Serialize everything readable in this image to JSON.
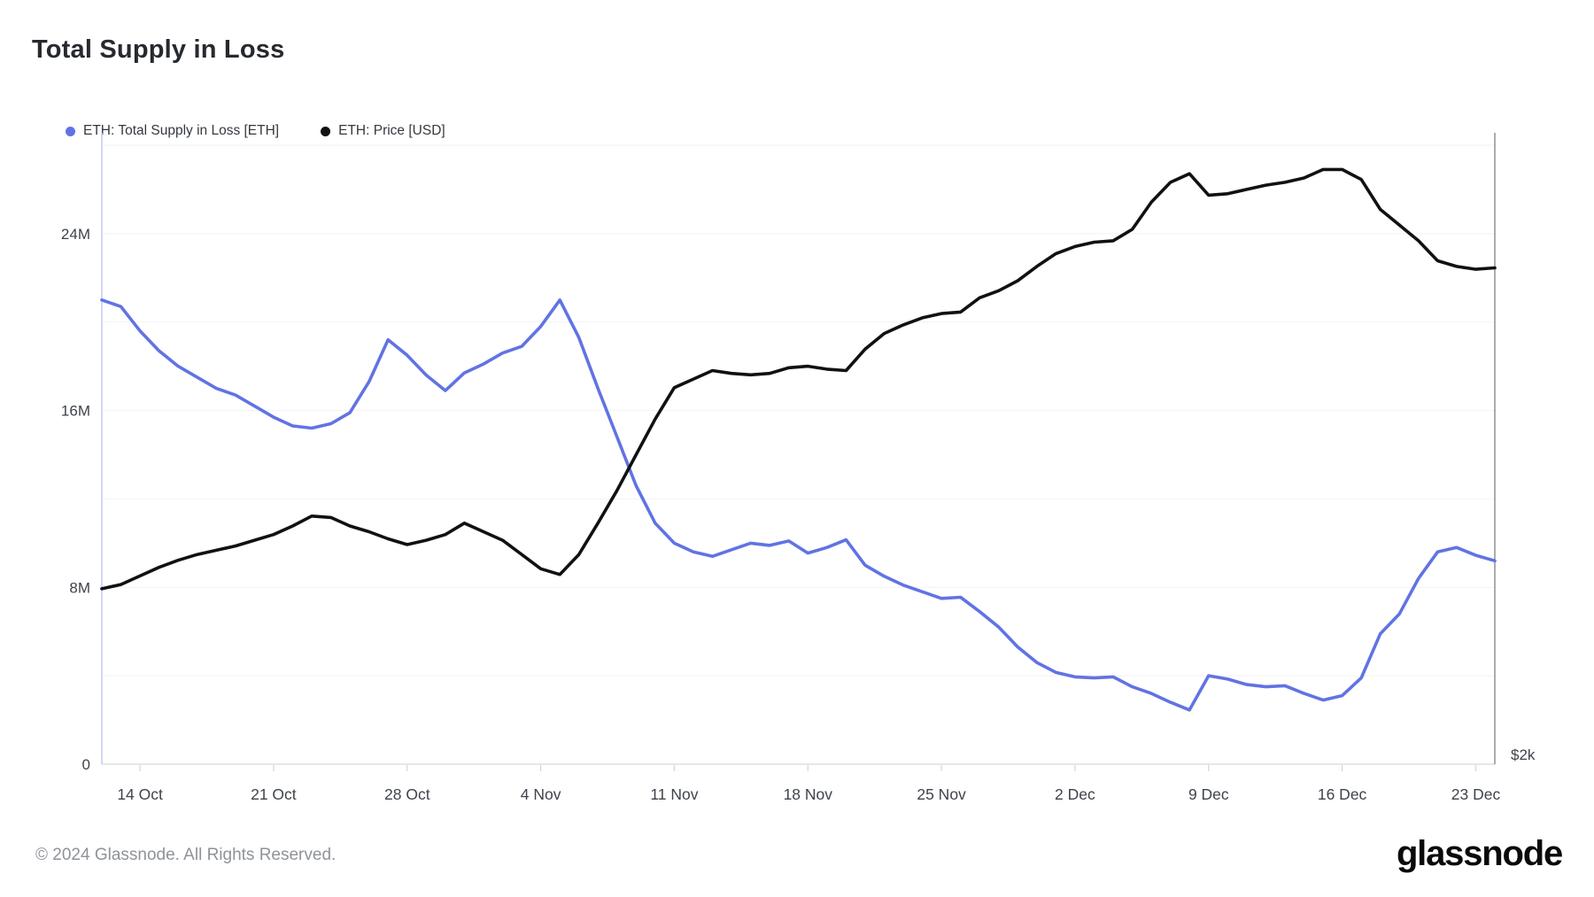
{
  "title": "Total Supply in Loss",
  "legend": [
    {
      "label": "ETH: Total Supply in Loss [ETH]",
      "color": "#6173e3"
    },
    {
      "label": "ETH: Price [USD]",
      "color": "#101114"
    }
  ],
  "footer": {
    "copyright": "© 2024 Glassnode. All Rights Reserved.",
    "brand": "glassnode"
  },
  "colors": {
    "accent_blue": "#6173e3",
    "line_black": "#101114",
    "axis_text": "#3f434b",
    "grid_line": "#f2f2f5",
    "bottom_axis_line": "#dcdee2",
    "left_axis_border": "#c6cdf3",
    "right_axis_border": "#97989e",
    "tick_mark": "#d4d5da",
    "footer_text": "#8f939a"
  },
  "chart_data": {
    "type": "line",
    "title": "Total Supply in Loss",
    "legend_position": "top-left",
    "grid": "horizontal-only",
    "x": [
      "2024-10-12",
      "2024-10-13",
      "2024-10-14",
      "2024-10-15",
      "2024-10-16",
      "2024-10-17",
      "2024-10-18",
      "2024-10-19",
      "2024-10-20",
      "2024-10-21",
      "2024-10-22",
      "2024-10-23",
      "2024-10-24",
      "2024-10-25",
      "2024-10-26",
      "2024-10-27",
      "2024-10-28",
      "2024-10-29",
      "2024-10-30",
      "2024-10-31",
      "2024-11-01",
      "2024-11-02",
      "2024-11-03",
      "2024-11-04",
      "2024-11-05",
      "2024-11-06",
      "2024-11-07",
      "2024-11-08",
      "2024-11-09",
      "2024-11-10",
      "2024-11-11",
      "2024-11-12",
      "2024-11-13",
      "2024-11-14",
      "2024-11-15",
      "2024-11-16",
      "2024-11-17",
      "2024-11-18",
      "2024-11-19",
      "2024-11-20",
      "2024-11-21",
      "2024-11-22",
      "2024-11-23",
      "2024-11-24",
      "2024-11-25",
      "2024-11-26",
      "2024-11-27",
      "2024-11-28",
      "2024-11-29",
      "2024-11-30",
      "2024-12-01",
      "2024-12-02",
      "2024-12-03",
      "2024-12-04",
      "2024-12-05",
      "2024-12-06",
      "2024-12-07",
      "2024-12-08",
      "2024-12-09",
      "2024-12-10",
      "2024-12-11",
      "2024-12-12",
      "2024-12-13",
      "2024-12-14",
      "2024-12-15",
      "2024-12-16",
      "2024-12-17",
      "2024-12-18",
      "2024-12-19",
      "2024-12-20",
      "2024-12-21",
      "2024-12-22",
      "2024-12-23",
      "2024-12-24"
    ],
    "x_axis": {
      "tick_labels": [
        "14 Oct",
        "21 Oct",
        "28 Oct",
        "4 Nov",
        "11 Nov",
        "18 Nov",
        "25 Nov",
        "2 Dec",
        "9 Dec",
        "16 Dec",
        "23 Dec"
      ],
      "tick_indices": [
        2,
        9,
        16,
        23,
        30,
        37,
        44,
        51,
        58,
        65,
        72
      ]
    },
    "y_axis": {
      "side": "left",
      "unit": "million ETH",
      "range": [
        0,
        28
      ],
      "grid_values": [
        0,
        4,
        8,
        12,
        16,
        20,
        24,
        28
      ],
      "tick_values": [
        0,
        8,
        16,
        24
      ],
      "tick_labels": [
        "0",
        "8M",
        "16M",
        "24M"
      ]
    },
    "price_axis": {
      "side": "right",
      "label": "$2k",
      "label_value": 2000,
      "range": [
        2000,
        4170
      ]
    },
    "series": [
      {
        "name": "ETH: Total Supply in Loss [ETH]",
        "axis": "left",
        "color": "#6173e3",
        "unit": "M ETH",
        "values": [
          21.0,
          20.7,
          19.6,
          18.7,
          18.0,
          17.5,
          17.0,
          16.7,
          16.2,
          15.7,
          15.3,
          15.2,
          15.4,
          15.9,
          17.3,
          19.2,
          18.5,
          17.6,
          16.9,
          17.7,
          18.1,
          18.6,
          18.9,
          19.8,
          21.0,
          19.3,
          17.0,
          14.8,
          12.6,
          10.9,
          10.0,
          9.6,
          9.4,
          9.7,
          10.0,
          9.9,
          10.1,
          9.55,
          9.8,
          10.15,
          9.0,
          8.5,
          8.1,
          7.8,
          7.5,
          7.55,
          6.9,
          6.2,
          5.3,
          4.6,
          4.15,
          3.95,
          3.9,
          3.95,
          3.5,
          3.2,
          2.8,
          2.45,
          4.0,
          3.85,
          3.6,
          3.5,
          3.55,
          3.2,
          2.9,
          3.1,
          3.9,
          5.9,
          6.8,
          8.4,
          9.6,
          9.8,
          9.45,
          9.2
        ]
      },
      {
        "name": "ETH: Price [USD]",
        "axis": "right",
        "color": "#101114",
        "unit": "USD",
        "values": [
          2615,
          2630,
          2660,
          2690,
          2715,
          2735,
          2750,
          2765,
          2785,
          2805,
          2835,
          2870,
          2865,
          2835,
          2815,
          2790,
          2770,
          2785,
          2805,
          2845,
          2815,
          2785,
          2735,
          2685,
          2665,
          2735,
          2845,
          2960,
          3085,
          3210,
          3320,
          3350,
          3380,
          3370,
          3365,
          3370,
          3390,
          3395,
          3385,
          3380,
          3455,
          3510,
          3540,
          3565,
          3580,
          3585,
          3635,
          3660,
          3695,
          3745,
          3790,
          3815,
          3830,
          3835,
          3875,
          3970,
          4040,
          4070,
          3995,
          4000,
          4015,
          4030,
          4040,
          4055,
          4085,
          4085,
          4050,
          3945,
          3890,
          3835,
          3765,
          3745,
          3735,
          3740
        ]
      }
    ]
  }
}
